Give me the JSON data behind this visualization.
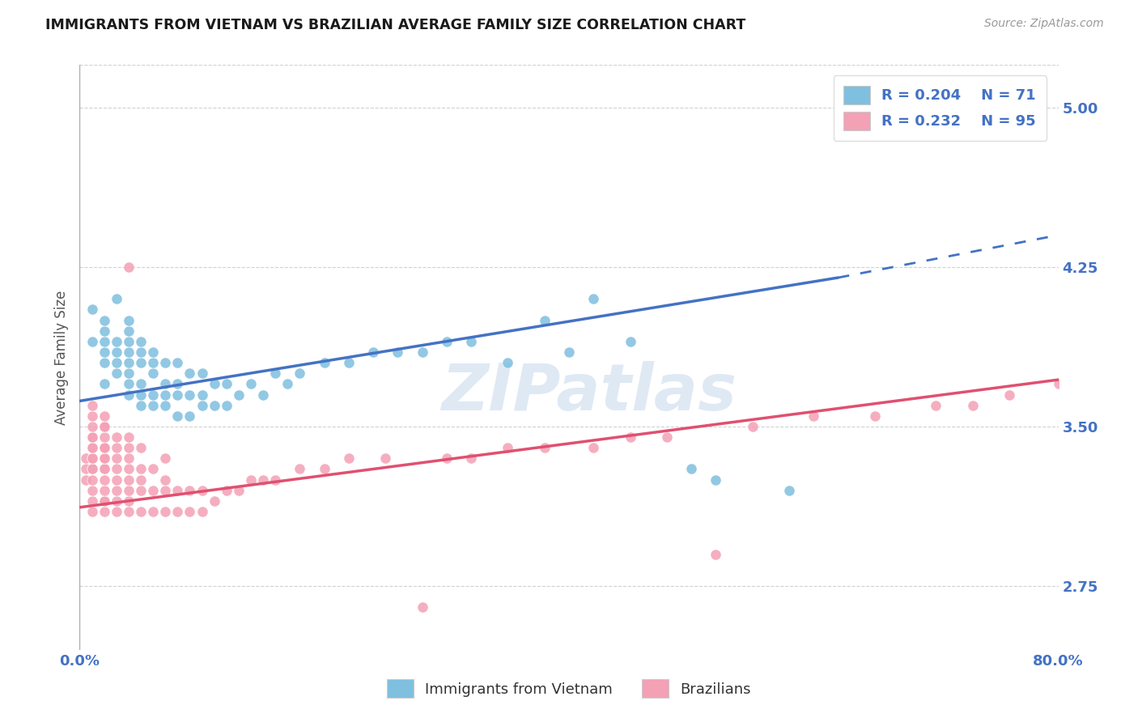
{
  "title": "IMMIGRANTS FROM VIETNAM VS BRAZILIAN AVERAGE FAMILY SIZE CORRELATION CHART",
  "source": "Source: ZipAtlas.com",
  "ylabel": "Average Family Size",
  "x_tick_labels": [
    "0.0%",
    "80.0%"
  ],
  "y_ticks": [
    2.75,
    3.5,
    4.25,
    5.0
  ],
  "xlim": [
    0.0,
    0.8
  ],
  "ylim": [
    2.45,
    5.2
  ],
  "legend_r1": "R = 0.204",
  "legend_n1": "N = 71",
  "legend_r2": "R = 0.232",
  "legend_n2": "N = 95",
  "color_vietnam": "#7fbfdf",
  "color_brazil": "#f4a0b5",
  "color_vietnam_line": "#4472c4",
  "color_brazil_line": "#e05070",
  "background_color": "#ffffff",
  "grid_color": "#cccccc",
  "title_color": "#1a1a1a",
  "label_color": "#4472c4",
  "watermark": "ZIPatlas",
  "vietnam_x": [
    0.01,
    0.01,
    0.02,
    0.02,
    0.02,
    0.02,
    0.02,
    0.02,
    0.03,
    0.03,
    0.03,
    0.03,
    0.03,
    0.04,
    0.04,
    0.04,
    0.04,
    0.04,
    0.04,
    0.04,
    0.04,
    0.05,
    0.05,
    0.05,
    0.05,
    0.05,
    0.05,
    0.06,
    0.06,
    0.06,
    0.06,
    0.06,
    0.07,
    0.07,
    0.07,
    0.07,
    0.08,
    0.08,
    0.08,
    0.08,
    0.09,
    0.09,
    0.09,
    0.1,
    0.1,
    0.1,
    0.11,
    0.11,
    0.12,
    0.12,
    0.13,
    0.14,
    0.15,
    0.16,
    0.17,
    0.18,
    0.2,
    0.22,
    0.24,
    0.26,
    0.28,
    0.3,
    0.32,
    0.35,
    0.38,
    0.4,
    0.42,
    0.45,
    0.5,
    0.52,
    0.58
  ],
  "vietnam_y": [
    3.9,
    4.05,
    3.7,
    3.8,
    3.85,
    3.9,
    3.95,
    4.0,
    3.75,
    3.8,
    3.85,
    3.9,
    4.1,
    3.65,
    3.7,
    3.75,
    3.8,
    3.85,
    3.9,
    3.95,
    4.0,
    3.6,
    3.65,
    3.7,
    3.8,
    3.85,
    3.9,
    3.6,
    3.65,
    3.75,
    3.8,
    3.85,
    3.6,
    3.65,
    3.7,
    3.8,
    3.55,
    3.65,
    3.7,
    3.8,
    3.55,
    3.65,
    3.75,
    3.6,
    3.65,
    3.75,
    3.6,
    3.7,
    3.6,
    3.7,
    3.65,
    3.7,
    3.65,
    3.75,
    3.7,
    3.75,
    3.8,
    3.8,
    3.85,
    3.85,
    3.85,
    3.9,
    3.9,
    3.8,
    4.0,
    3.85,
    4.1,
    3.9,
    3.3,
    3.25,
    3.2
  ],
  "brazil_x": [
    0.005,
    0.005,
    0.005,
    0.01,
    0.01,
    0.01,
    0.01,
    0.01,
    0.01,
    0.01,
    0.01,
    0.01,
    0.01,
    0.01,
    0.01,
    0.01,
    0.01,
    0.01,
    0.02,
    0.02,
    0.02,
    0.02,
    0.02,
    0.02,
    0.02,
    0.02,
    0.02,
    0.02,
    0.02,
    0.02,
    0.02,
    0.02,
    0.02,
    0.02,
    0.03,
    0.03,
    0.03,
    0.03,
    0.03,
    0.03,
    0.03,
    0.03,
    0.04,
    0.04,
    0.04,
    0.04,
    0.04,
    0.04,
    0.04,
    0.04,
    0.04,
    0.05,
    0.05,
    0.05,
    0.05,
    0.05,
    0.06,
    0.06,
    0.06,
    0.07,
    0.07,
    0.07,
    0.07,
    0.08,
    0.08,
    0.09,
    0.09,
    0.1,
    0.1,
    0.11,
    0.12,
    0.13,
    0.14,
    0.15,
    0.16,
    0.18,
    0.2,
    0.22,
    0.25,
    0.28,
    0.3,
    0.32,
    0.35,
    0.38,
    0.42,
    0.45,
    0.48,
    0.52,
    0.55,
    0.6,
    0.65,
    0.7,
    0.73,
    0.76,
    0.8
  ],
  "brazil_y": [
    3.25,
    3.3,
    3.35,
    3.1,
    3.15,
    3.2,
    3.25,
    3.3,
    3.3,
    3.35,
    3.35,
    3.4,
    3.4,
    3.45,
    3.45,
    3.5,
    3.55,
    3.6,
    3.1,
    3.15,
    3.15,
    3.2,
    3.25,
    3.3,
    3.3,
    3.35,
    3.35,
    3.4,
    3.4,
    3.4,
    3.45,
    3.5,
    3.5,
    3.55,
    3.1,
    3.15,
    3.2,
    3.25,
    3.3,
    3.35,
    3.4,
    3.45,
    3.1,
    3.15,
    3.2,
    3.25,
    3.3,
    3.35,
    3.4,
    3.45,
    4.25,
    3.1,
    3.2,
    3.25,
    3.3,
    3.4,
    3.1,
    3.2,
    3.3,
    3.1,
    3.2,
    3.25,
    3.35,
    3.1,
    3.2,
    3.1,
    3.2,
    3.1,
    3.2,
    3.15,
    3.2,
    3.2,
    3.25,
    3.25,
    3.25,
    3.3,
    3.3,
    3.35,
    3.35,
    2.65,
    3.35,
    3.35,
    3.4,
    3.4,
    3.4,
    3.45,
    3.45,
    2.9,
    3.5,
    3.55,
    3.55,
    3.6,
    3.6,
    3.65,
    3.7
  ],
  "viet_line_x0": 0.0,
  "viet_line_x1": 0.62,
  "viet_line_x1_dash": 0.8,
  "viet_line_y0": 3.62,
  "viet_line_y1": 4.2,
  "viet_line_y1_dash": 4.4,
  "braz_line_x0": 0.0,
  "braz_line_x1": 0.8,
  "braz_line_y0": 3.12,
  "braz_line_y1": 3.72
}
